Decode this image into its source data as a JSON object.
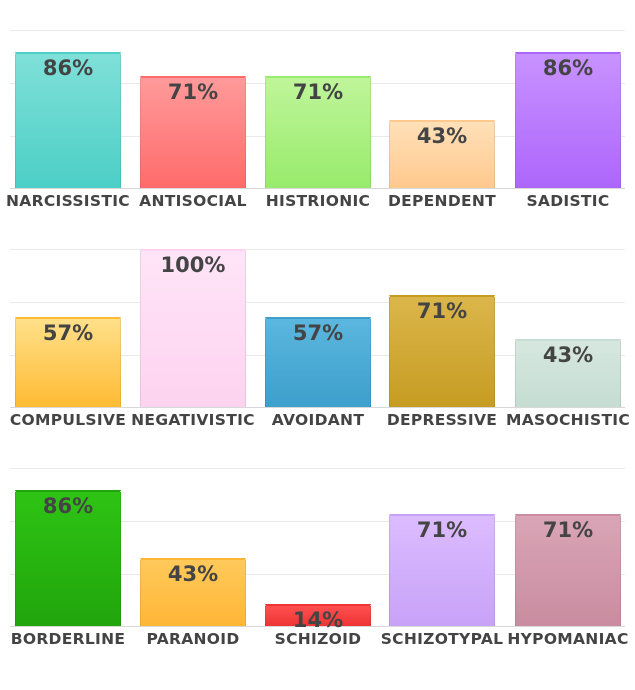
{
  "chart_data": [
    {
      "type": "bar",
      "ylim": [
        0,
        100
      ],
      "grid": true,
      "categories": [
        "NARCISSISTIC",
        "ANTISOCIAL",
        "HISTRIONIC",
        "DEPENDENT",
        "SADISTIC"
      ],
      "values": [
        86,
        71,
        71,
        43,
        86
      ],
      "value_labels": [
        "86%",
        "71%",
        "71%",
        "43%",
        "86%"
      ],
      "colors": [
        [
          "#7fe0d8",
          "#4ccfc6"
        ],
        [
          "#ff9a9a",
          "#ff6b6b"
        ],
        [
          "#bff59a",
          "#98eb6c"
        ],
        [
          "#ffe0b8",
          "#ffc98e"
        ],
        [
          "#c892ff",
          "#ad66fb"
        ]
      ]
    },
    {
      "type": "bar",
      "ylim": [
        0,
        100
      ],
      "grid": true,
      "categories": [
        "COMPULSIVE",
        "NEGATIVISTIC",
        "AVOIDANT",
        "DEPRESSIVE",
        "MASOCHISTIC"
      ],
      "values": [
        57,
        100,
        57,
        71,
        43
      ],
      "value_labels": [
        "57%",
        "100%",
        "57%",
        "71%",
        "43%"
      ],
      "colors": [
        [
          "#ffe08a",
          "#ffbb33"
        ],
        [
          "#ffe4f7",
          "#fdd3f0"
        ],
        [
          "#5bb7de",
          "#3d9fcc"
        ],
        [
          "#dbb64a",
          "#c69c22"
        ],
        [
          "#d6e7df",
          "#c5ddd2"
        ]
      ]
    },
    {
      "type": "bar",
      "ylim": [
        0,
        100
      ],
      "grid": true,
      "categories": [
        "BORDERLINE",
        "PARANOID",
        "SCHIZOID",
        "SCHIZOTYPAL",
        "HYPOMANIAC"
      ],
      "values": [
        86,
        43,
        14,
        71,
        71
      ],
      "value_labels": [
        "86%",
        "43%",
        "14%",
        "71%",
        "71%"
      ],
      "colors": [
        [
          "#2ec414",
          "#21a50c"
        ],
        [
          "#ffc95a",
          "#ffb637"
        ],
        [
          "#ff5050",
          "#ee3434"
        ],
        [
          "#dcbcff",
          "#c8a2f8"
        ],
        [
          "#d9a5b6",
          "#c98ca0"
        ]
      ]
    }
  ]
}
